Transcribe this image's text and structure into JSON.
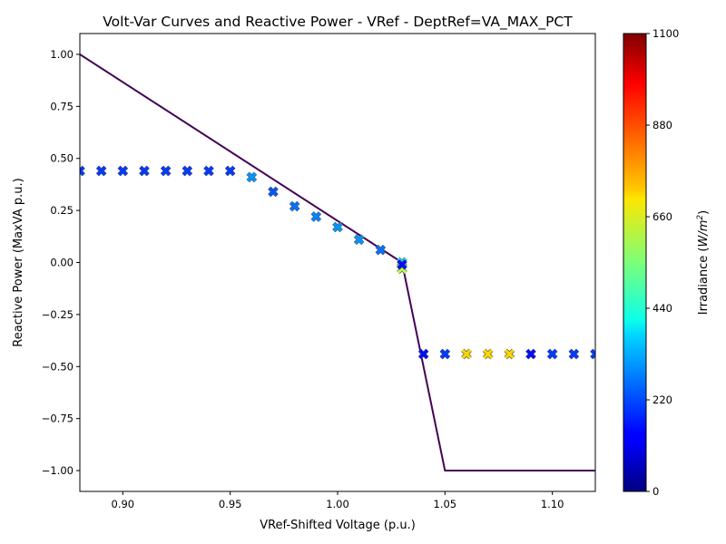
{
  "chart_data": {
    "type": "scatter",
    "title": "Volt-Var Curves and Reactive Power - VRef - DeptRef=VA_MAX_PCT",
    "xlabel": "VRef-Shifted Voltage (p.u.)",
    "ylabel": "Reactive Power (MaxVA p.u.)",
    "xlim": [
      0.88,
      1.12
    ],
    "ylim": [
      -1.1,
      1.1
    ],
    "x_ticks": [
      "0.90",
      "0.95",
      "1.00",
      "1.05",
      "1.10"
    ],
    "x_tick_values": [
      0.9,
      0.95,
      1.0,
      1.05,
      1.1
    ],
    "y_ticks": [
      "1.00",
      "0.75",
      "0.50",
      "0.25",
      "0.00",
      "−0.25",
      "−0.50",
      "−0.75",
      "−1.00"
    ],
    "y_tick_values": [
      1.0,
      0.75,
      0.5,
      0.25,
      0.0,
      -0.25,
      -0.5,
      -0.75,
      -1.0
    ],
    "grid": false,
    "curve": {
      "color": "#440154",
      "points": [
        [
          0.88,
          1.0
        ],
        [
          1.03,
          0.0
        ],
        [
          1.05,
          -1.0
        ],
        [
          1.12,
          -1.0
        ]
      ]
    },
    "series": [
      {
        "marker": "x",
        "points": [
          {
            "x": 0.88,
            "y": 0.44,
            "irr": 200
          },
          {
            "x": 0.89,
            "y": 0.44,
            "irr": 200
          },
          {
            "x": 0.9,
            "y": 0.44,
            "irr": 200
          },
          {
            "x": 0.91,
            "y": 0.44,
            "irr": 200
          },
          {
            "x": 0.92,
            "y": 0.44,
            "irr": 200
          },
          {
            "x": 0.93,
            "y": 0.44,
            "irr": 200
          },
          {
            "x": 0.94,
            "y": 0.44,
            "irr": 200
          },
          {
            "x": 0.95,
            "y": 0.44,
            "irr": 200
          },
          {
            "x": 0.96,
            "y": 0.41,
            "irr": 300
          },
          {
            "x": 0.97,
            "y": 0.34,
            "irr": 230
          },
          {
            "x": 0.98,
            "y": 0.27,
            "irr": 260
          },
          {
            "x": 0.99,
            "y": 0.22,
            "irr": 280
          },
          {
            "x": 1.0,
            "y": 0.17,
            "irr": 300
          },
          {
            "x": 1.01,
            "y": 0.11,
            "irr": 300
          },
          {
            "x": 1.02,
            "y": 0.06,
            "irr": 260
          },
          {
            "x": 1.03,
            "y": 0.0,
            "irr": 400
          },
          {
            "x": 1.03,
            "y": -0.03,
            "irr": 620
          },
          {
            "x": 1.03,
            "y": -0.01,
            "irr": 150
          },
          {
            "x": 1.04,
            "y": -0.44,
            "irr": 150
          },
          {
            "x": 1.05,
            "y": -0.44,
            "irr": 200
          },
          {
            "x": 1.06,
            "y": -0.44,
            "irr": 730
          },
          {
            "x": 1.07,
            "y": -0.44,
            "irr": 730
          },
          {
            "x": 1.08,
            "y": -0.44,
            "irr": 730
          },
          {
            "x": 1.09,
            "y": -0.44,
            "irr": 150
          },
          {
            "x": 1.1,
            "y": -0.44,
            "irr": 200
          },
          {
            "x": 1.11,
            "y": -0.44,
            "irr": 200
          },
          {
            "x": 1.12,
            "y": -0.44,
            "irr": 200
          }
        ]
      }
    ],
    "colorbar": {
      "label": "Irradiance ($W/m^2$)",
      "label_main": "Irradiance (",
      "label_unit": "W/m",
      "label_exp": "2",
      "label_close": ")",
      "min": 0,
      "max": 1100,
      "ticks": [
        "0",
        "220",
        "440",
        "660",
        "880",
        "1100"
      ],
      "tick_values": [
        0,
        220,
        440,
        660,
        880,
        1100
      ],
      "colormap": "jet"
    }
  }
}
